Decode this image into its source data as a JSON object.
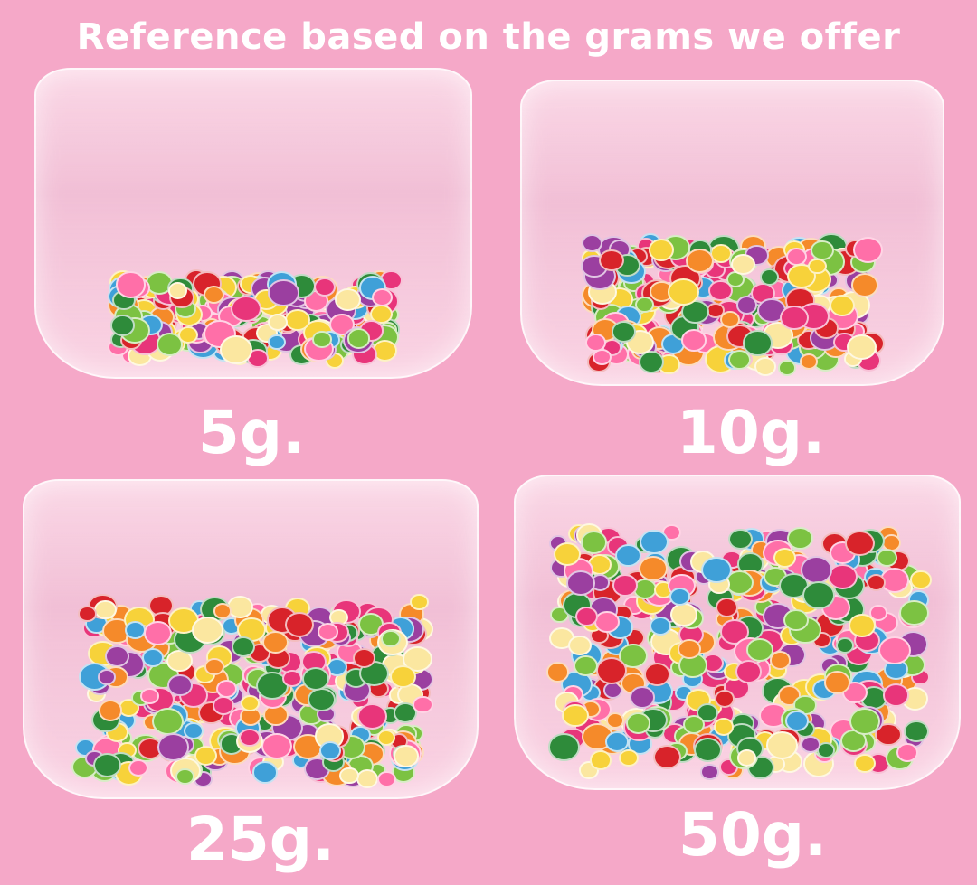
{
  "title": "Reference based on the grams we offer",
  "colors": {
    "background": "#f5a8c8",
    "text": "#ffffff"
  },
  "panels": [
    {
      "label": "5g.",
      "fill_level": 0.35
    },
    {
      "label": "10g.",
      "fill_level": 0.5
    },
    {
      "label": "25g.",
      "fill_level": 0.65
    },
    {
      "label": "50g.",
      "fill_level": 0.85
    }
  ]
}
